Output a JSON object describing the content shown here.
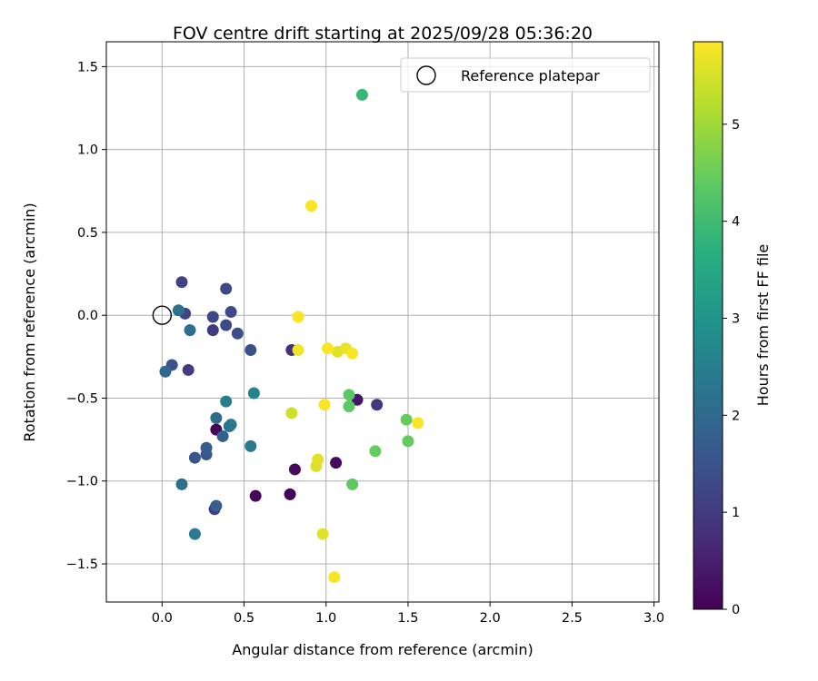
{
  "chart_data": {
    "type": "scatter",
    "title": "FOV centre drift starting at 2025/09/28 05:36:20",
    "xlabel": "Angular distance from reference (arcmin)",
    "ylabel": "Rotation from reference (arcmin)",
    "xlim": [
      -0.34,
      3.03
    ],
    "ylim": [
      -1.73,
      1.65
    ],
    "xticks": [
      0.0,
      0.5,
      1.0,
      1.5,
      2.0,
      2.5,
      3.0
    ],
    "xtick_labels": [
      "0.0",
      "0.5",
      "1.0",
      "1.5",
      "2.0",
      "2.5",
      "3.0"
    ],
    "yticks": [
      -1.5,
      -1.0,
      -0.5,
      0.0,
      0.5,
      1.0,
      1.5
    ],
    "ytick_labels": [
      "−1.5",
      "−1.0",
      "−0.5",
      "0.0",
      "0.5",
      "1.0",
      "1.5"
    ],
    "grid": true,
    "legend": {
      "placement": "top-right",
      "label": "Reference platepar"
    },
    "reference_point": {
      "x": 0.0,
      "y": 0.0
    },
    "colorbar": {
      "label": "Hours from first FF file",
      "range": [
        0,
        5.85
      ],
      "ticks": [
        0,
        1,
        2,
        3,
        4,
        5
      ],
      "tick_labels": [
        "0",
        "1",
        "2",
        "3",
        "4",
        "5"
      ],
      "colormap": "viridis"
    },
    "points": [
      {
        "x": 0.33,
        "y": -0.69,
        "t": 0.05
      },
      {
        "x": 0.57,
        "y": -1.09,
        "t": 0.1
      },
      {
        "x": 0.78,
        "y": -1.08,
        "t": 0.05
      },
      {
        "x": 0.81,
        "y": -0.93,
        "t": 0.15
      },
      {
        "x": 1.06,
        "y": -0.89,
        "t": 0.15
      },
      {
        "x": 1.19,
        "y": -0.51,
        "t": 0.35
      },
      {
        "x": 0.79,
        "y": -0.21,
        "t": 0.8
      },
      {
        "x": 1.31,
        "y": -0.54,
        "t": 0.9
      },
      {
        "x": 0.16,
        "y": -0.33,
        "t": 1.0
      },
      {
        "x": 0.31,
        "y": -0.09,
        "t": 1.0
      },
      {
        "x": 0.32,
        "y": -1.17,
        "t": 1.05
      },
      {
        "x": 0.12,
        "y": 0.2,
        "t": 1.15
      },
      {
        "x": 0.14,
        "y": 0.01,
        "t": 1.2
      },
      {
        "x": 0.31,
        "y": -0.01,
        "t": 1.25
      },
      {
        "x": 0.39,
        "y": 0.16,
        "t": 1.3
      },
      {
        "x": 0.39,
        "y": -0.06,
        "t": 1.3
      },
      {
        "x": 0.42,
        "y": 0.02,
        "t": 1.35
      },
      {
        "x": 0.46,
        "y": -0.11,
        "t": 1.4
      },
      {
        "x": 0.54,
        "y": -0.21,
        "t": 1.45
      },
      {
        "x": 0.06,
        "y": -0.3,
        "t": 1.5
      },
      {
        "x": 0.2,
        "y": -0.86,
        "t": 1.55
      },
      {
        "x": 0.27,
        "y": -0.84,
        "t": 1.6
      },
      {
        "x": 0.27,
        "y": -0.8,
        "t": 1.7
      },
      {
        "x": 0.33,
        "y": -1.15,
        "t": 1.75
      },
      {
        "x": 0.37,
        "y": -0.73,
        "t": 1.8
      },
      {
        "x": 0.02,
        "y": -0.34,
        "t": 1.95
      },
      {
        "x": 0.33,
        "y": -0.62,
        "t": 2.0
      },
      {
        "x": 0.17,
        "y": -0.09,
        "t": 2.1
      },
      {
        "x": 0.12,
        "y": -1.02,
        "t": 2.15
      },
      {
        "x": 0.1,
        "y": 0.03,
        "t": 2.2
      },
      {
        "x": 0.41,
        "y": -0.67,
        "t": 2.25
      },
      {
        "x": 0.42,
        "y": -0.66,
        "t": 2.3
      },
      {
        "x": 0.54,
        "y": -0.79,
        "t": 2.35
      },
      {
        "x": 0.2,
        "y": -1.32,
        "t": 2.4
      },
      {
        "x": 0.39,
        "y": -0.52,
        "t": 2.5
      },
      {
        "x": 0.56,
        "y": -0.47,
        "t": 2.6
      },
      {
        "x": 1.22,
        "y": 1.33,
        "t": 3.9
      },
      {
        "x": 1.14,
        "y": -0.48,
        "t": 4.35
      },
      {
        "x": 1.14,
        "y": -0.55,
        "t": 4.35
      },
      {
        "x": 1.16,
        "y": -1.02,
        "t": 4.4
      },
      {
        "x": 1.3,
        "y": -0.82,
        "t": 4.45
      },
      {
        "x": 1.49,
        "y": -0.63,
        "t": 4.45
      },
      {
        "x": 1.5,
        "y": -0.76,
        "t": 4.45
      },
      {
        "x": 0.79,
        "y": -0.59,
        "t": 5.4
      },
      {
        "x": 0.94,
        "y": -0.91,
        "t": 5.55
      },
      {
        "x": 0.95,
        "y": -0.87,
        "t": 5.6
      },
      {
        "x": 0.98,
        "y": -1.32,
        "t": 5.6
      },
      {
        "x": 1.07,
        "y": -0.22,
        "t": 5.6
      },
      {
        "x": 1.12,
        "y": -0.2,
        "t": 5.65
      },
      {
        "x": 0.83,
        "y": -0.21,
        "t": 5.75
      },
      {
        "x": 0.83,
        "y": -0.01,
        "t": 5.8
      },
      {
        "x": 0.91,
        "y": 0.66,
        "t": 5.8
      },
      {
        "x": 0.99,
        "y": -0.54,
        "t": 5.8
      },
      {
        "x": 1.01,
        "y": -0.2,
        "t": 5.8
      },
      {
        "x": 1.05,
        "y": -1.58,
        "t": 5.8
      },
      {
        "x": 1.16,
        "y": -0.23,
        "t": 5.8
      },
      {
        "x": 1.56,
        "y": -0.65,
        "t": 5.8
      }
    ]
  }
}
